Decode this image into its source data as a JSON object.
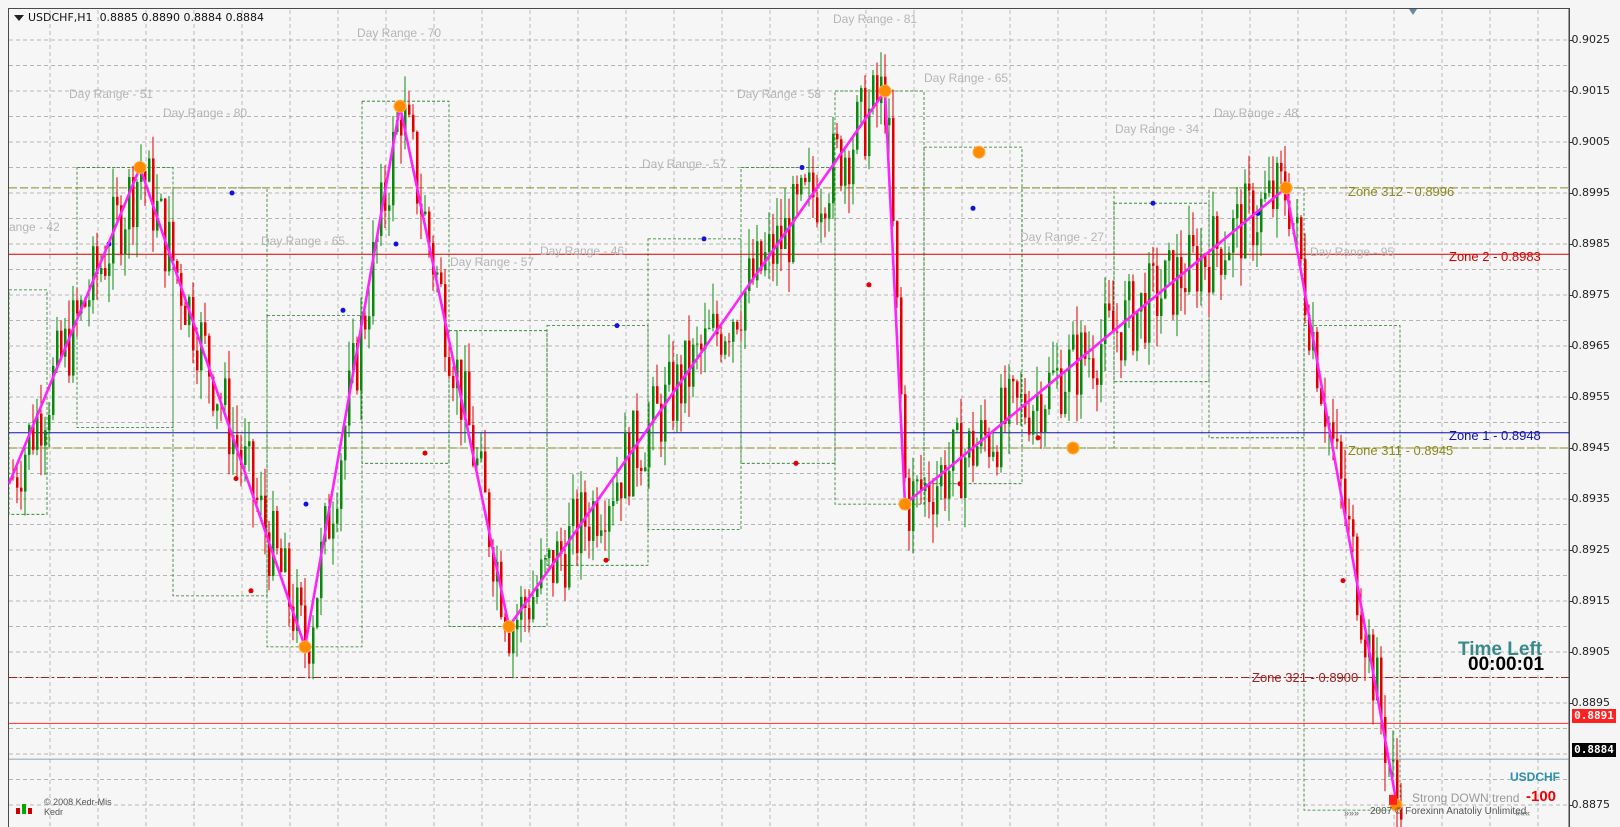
{
  "header": {
    "symbol_tf": "USDCHF,H1",
    "ohlc": "0.8885 0.8890 0.8884 0.8884"
  },
  "price_axis": {
    "labels": [
      "0.9025",
      "0.9015",
      "0.9005",
      "0.8995",
      "0.8985",
      "0.8975",
      "0.8965",
      "0.8955",
      "0.8945",
      "0.8935",
      "0.8925",
      "0.8915",
      "0.8905",
      "0.8895",
      "0.8875"
    ],
    "current_price": "0.8884",
    "line_price": "0.8891"
  },
  "colors": {
    "background": "#f6f6f6",
    "grid": "#8a8a8a",
    "bull": "#0a8a0a",
    "bear": "#e00000",
    "zigzag": "#ff22ff",
    "marker": "#ff8c00",
    "zone2": "#d40000",
    "zone1": "#1010b0",
    "zone_olive": "#8a8a20",
    "zone321": "#a02020",
    "day_range": "#b5b5b5"
  },
  "day_ranges": [
    {
      "text": "Day Range - 70"
    },
    {
      "text": "Day Range - 81"
    },
    {
      "text": "Day Range - 51"
    },
    {
      "text": "Day Range - 80"
    },
    {
      "text": "Day Range - 58"
    },
    {
      "text": "Day Range - 65"
    },
    {
      "text": "Day Range - 48"
    },
    {
      "text": "Day Range - 34"
    },
    {
      "text": "Day Range - 57"
    },
    {
      "text": "ange - 42"
    },
    {
      "text": "Day Range - 65"
    },
    {
      "text": "Day Range - 57"
    },
    {
      "text": "Day Range - 46"
    },
    {
      "text": "Day Range - 27"
    },
    {
      "text": "Day Range - 95"
    }
  ],
  "zones": {
    "zone312": "Zone 312 - 0.8996",
    "zone2": "Zone 2 - 0.8983",
    "zone1": "Zone 1 - 0.8948",
    "zone311": "Zone 311 - 0.8945",
    "zone321": "Zone 321 - 0.8900"
  },
  "time_left": {
    "title": "Time Left",
    "value": "00:00:01"
  },
  "signal": {
    "symbol": "USDCHF",
    "trend": "Strong DOWN trend",
    "score": "-100"
  },
  "footer": {
    "copyright": "2007 © Forexinn Anatoliy Unlimited",
    "kedr": "© 2008 Kedr-Mis\nKedr",
    "chevrons_left": "»»»",
    "chevrons_right": "«««"
  }
}
